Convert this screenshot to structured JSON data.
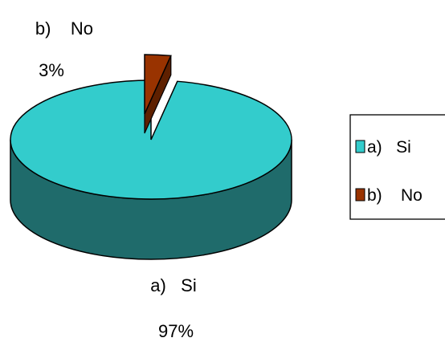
{
  "chart_data": {
    "type": "pie",
    "style": "3d",
    "title": "",
    "slices": [
      {
        "name": "a)   Si",
        "value": 97,
        "label": "97%",
        "color": "#33CCCC",
        "side_color": "#1F6B6B"
      },
      {
        "name": "b)    No",
        "value": 3,
        "label": "3%",
        "color": "#993300",
        "side_color": "#5E2000"
      }
    ],
    "legend": {
      "placement": "right",
      "entries": [
        "a)   Si",
        "b)    No"
      ]
    }
  }
}
